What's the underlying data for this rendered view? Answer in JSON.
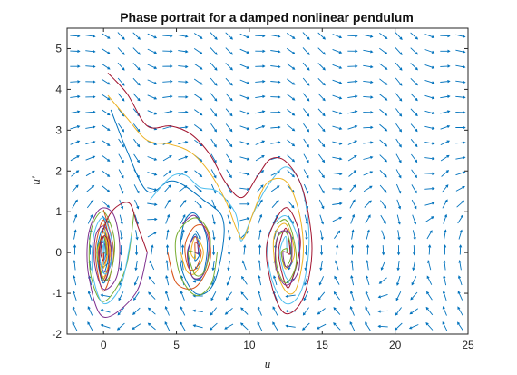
{
  "chart_data": {
    "type": "line",
    "title": "Phase portrait for a damped nonlinear pendulum",
    "xlabel": "u",
    "ylabel": "u′",
    "xlim": [
      -2.5,
      25
    ],
    "ylim": [
      -2,
      5.5
    ],
    "xticks": [
      0,
      5,
      10,
      15,
      20,
      25
    ],
    "xtick_labels": [
      "0",
      "5",
      "10",
      "15",
      "20",
      "25"
    ],
    "yticks": [
      -2,
      -1,
      0,
      1,
      2,
      3,
      4,
      5
    ],
    "ytick_labels": [
      "-2",
      "-1",
      "0",
      "1",
      "2",
      "3",
      "4",
      "5"
    ],
    "grid": false,
    "legend": null,
    "vector_field": {
      "color": "#0072BD",
      "x_range": [
        -2.5,
        25
      ],
      "y_range": [
        -2,
        5.5
      ],
      "x_count": 26,
      "y_count": 20
    },
    "series": [
      {
        "color": "#0072BD",
        "points": [
          [
            0,
            0.85
          ],
          [
            0.55,
            0
          ],
          [
            0,
            -0.75
          ],
          [
            -0.45,
            0
          ],
          [
            0,
            0.6
          ],
          [
            0.35,
            0
          ],
          [
            0,
            -0.5
          ],
          [
            -0.28,
            0
          ],
          [
            0,
            0.38
          ],
          [
            0.18,
            0
          ],
          [
            0,
            -0.2
          ],
          [
            0,
            0
          ]
        ]
      },
      {
        "color": "#D95319",
        "points": [
          [
            0,
            1.05
          ],
          [
            0.7,
            0
          ],
          [
            0,
            -0.95
          ],
          [
            -0.55,
            0
          ],
          [
            0,
            0.8
          ],
          [
            0.45,
            0
          ],
          [
            0,
            -0.65
          ],
          [
            -0.35,
            0
          ],
          [
            0,
            0.5
          ],
          [
            0.25,
            0
          ],
          [
            0,
            -0.3
          ],
          [
            0,
            0
          ]
        ]
      },
      {
        "color": "#EDB120",
        "points": [
          [
            0,
            0.7
          ],
          [
            0.45,
            0
          ],
          [
            0,
            -0.6
          ],
          [
            -0.38,
            0
          ],
          [
            0,
            0.5
          ],
          [
            0.28,
            0
          ],
          [
            0,
            -0.38
          ],
          [
            0,
            0
          ]
        ]
      },
      {
        "color": "#7E2F8E",
        "points": [
          [
            3,
            0
          ],
          [
            2.2,
            -1.0
          ],
          [
            0,
            -1.58
          ],
          [
            -1.0,
            -0.6
          ],
          [
            -1.05,
            0.4
          ],
          [
            -0.3,
            1.05
          ],
          [
            0.65,
            0.95
          ],
          [
            1.1,
            0.2
          ],
          [
            0.9,
            -0.6
          ],
          [
            0,
            -0.9
          ],
          [
            -0.6,
            -0.3
          ],
          [
            -0.55,
            0.4
          ],
          [
            0,
            0.65
          ],
          [
            0.45,
            0.3
          ],
          [
            0.5,
            -0.3
          ],
          [
            0,
            -0.45
          ],
          [
            -0.35,
            0
          ],
          [
            0,
            0.25
          ],
          [
            0.15,
            0
          ],
          [
            0,
            0
          ]
        ]
      },
      {
        "color": "#77AC30",
        "points": [
          [
            2.1,
            1.0
          ],
          [
            1.5,
            -0.4
          ],
          [
            0,
            -1.2
          ],
          [
            -0.9,
            -0.5
          ],
          [
            -0.85,
            0.55
          ],
          [
            0,
            1.0
          ],
          [
            0.75,
            0.3
          ],
          [
            0.5,
            -0.5
          ],
          [
            0,
            -0.65
          ],
          [
            -0.45,
            0
          ],
          [
            0,
            0.4
          ],
          [
            0.2,
            0
          ],
          [
            0,
            0
          ]
        ]
      },
      {
        "color": "#4DBEEE",
        "points": [
          [
            1.9,
            0.4
          ],
          [
            1.2,
            -0.8
          ],
          [
            0,
            -1.25
          ],
          [
            -0.75,
            -0.5
          ],
          [
            -0.65,
            0.45
          ],
          [
            0,
            0.85
          ],
          [
            0.6,
            0.2
          ],
          [
            0.4,
            -0.4
          ],
          [
            0,
            -0.5
          ],
          [
            -0.3,
            0
          ],
          [
            0,
            0.3
          ],
          [
            0,
            0
          ]
        ]
      },
      {
        "color": "#A2142F",
        "points": [
          [
            3,
            0
          ],
          [
            2.3,
            0.7
          ],
          [
            1.8,
            1.2
          ],
          [
            1.0,
            1.15
          ],
          [
            0.3,
            0.85
          ],
          [
            -0.2,
            0.3
          ],
          [
            -0.3,
            -0.35
          ],
          [
            0,
            -0.7
          ],
          [
            0.35,
            -0.4
          ],
          [
            0.3,
            0.25
          ],
          [
            0,
            0.4
          ],
          [
            -0.2,
            0
          ],
          [
            0,
            -0.2
          ],
          [
            0,
            0
          ]
        ]
      },
      {
        "color": "#0072BD",
        "points": [
          [
            0.5,
            3.5
          ],
          [
            1.6,
            2.5
          ],
          [
            3.0,
            1.5
          ],
          [
            4.5,
            1.75
          ],
          [
            5.5,
            1.65
          ],
          [
            6.8,
            1.3
          ],
          [
            8.1,
            0.9
          ],
          [
            8.2,
            0.2
          ],
          [
            7.5,
            -0.8
          ],
          [
            6.3,
            -1.0
          ],
          [
            5.3,
            -0.3
          ],
          [
            5.5,
            0.7
          ],
          [
            6.3,
            0.95
          ],
          [
            7.1,
            0.3
          ],
          [
            6.8,
            -0.55
          ],
          [
            6.1,
            -0.6
          ],
          [
            5.8,
            0
          ],
          [
            6.3,
            0.45
          ],
          [
            6.6,
            0
          ],
          [
            6.28,
            -0.2
          ],
          [
            6.28,
            0
          ]
        ]
      },
      {
        "color": "#D95319",
        "points": [
          [
            4.4,
            0
          ],
          [
            5.0,
            -0.75
          ],
          [
            6.3,
            -0.85
          ],
          [
            7.3,
            -0.2
          ],
          [
            7.1,
            0.55
          ],
          [
            6.3,
            0.65
          ],
          [
            5.6,
            0.2
          ],
          [
            5.8,
            -0.35
          ],
          [
            6.3,
            -0.4
          ],
          [
            6.7,
            0
          ],
          [
            6.3,
            0.25
          ],
          [
            6.28,
            0
          ]
        ]
      },
      {
        "color": "#EDB120",
        "points": [
          [
            5.3,
            0
          ],
          [
            5.7,
            -0.45
          ],
          [
            6.3,
            -0.5
          ],
          [
            6.85,
            0
          ],
          [
            6.3,
            0.38
          ],
          [
            6.0,
            0
          ],
          [
            6.28,
            -0.15
          ],
          [
            6.28,
            0
          ]
        ]
      },
      {
        "color": "#7E2F8E",
        "points": [
          [
            5.4,
            0.7
          ],
          [
            6.3,
            0.9
          ],
          [
            7.2,
            0.3
          ],
          [
            6.9,
            -0.5
          ],
          [
            6.1,
            -0.6
          ],
          [
            5.75,
            0
          ],
          [
            6.3,
            0.4
          ],
          [
            6.5,
            0
          ],
          [
            6.28,
            0
          ]
        ]
      },
      {
        "color": "#77AC30",
        "points": [
          [
            7.8,
            0
          ],
          [
            7.4,
            -0.75
          ],
          [
            6.3,
            -1.05
          ],
          [
            5.2,
            -0.5
          ],
          [
            5.0,
            0.4
          ],
          [
            6.3,
            0.85
          ],
          [
            7.3,
            0.4
          ],
          [
            7.0,
            -0.4
          ],
          [
            6.3,
            -0.55
          ],
          [
            5.8,
            0
          ],
          [
            6.28,
            0
          ]
        ]
      },
      {
        "color": "#4DBEEE",
        "points": [
          [
            3.2,
            1.3
          ],
          [
            4.6,
            1.85
          ],
          [
            5.6,
            1.9
          ],
          [
            6.6,
            1.6
          ],
          [
            7.8,
            1.5
          ],
          [
            9.0,
            1.0
          ],
          [
            9.3,
            0.5
          ],
          [
            9.5,
            0.3
          ],
          [
            10.2,
            0.9
          ],
          [
            11.2,
            1.6
          ],
          [
            12.5,
            2.1
          ],
          [
            13.6,
            1.6
          ],
          [
            14.1,
            0.3
          ],
          [
            13.6,
            -0.9
          ],
          [
            12.5,
            -1.25
          ],
          [
            11.5,
            -0.6
          ],
          [
            11.3,
            0.4
          ],
          [
            12.5,
            0.9
          ],
          [
            13.4,
            0.2
          ],
          [
            13.0,
            -0.6
          ],
          [
            12.5,
            -0.6
          ],
          [
            12.1,
            0
          ],
          [
            12.5,
            0.4
          ],
          [
            12.57,
            0
          ]
        ]
      },
      {
        "color": "#A2142F",
        "points": [
          [
            0.3,
            4.4
          ],
          [
            1.6,
            3.9
          ],
          [
            3.0,
            3.1
          ],
          [
            4.6,
            3.1
          ],
          [
            6.0,
            2.9
          ],
          [
            7.3,
            2.4
          ],
          [
            8.4,
            1.7
          ],
          [
            9.5,
            1.35
          ],
          [
            10.6,
            1.9
          ],
          [
            11.5,
            2.3
          ],
          [
            12.6,
            2.2
          ],
          [
            13.7,
            1.5
          ],
          [
            14.3,
            0.1
          ],
          [
            13.7,
            -1.1
          ],
          [
            12.5,
            -1.5
          ],
          [
            11.6,
            -0.9
          ],
          [
            11.2,
            0.2
          ],
          [
            12.5,
            1.1
          ],
          [
            13.5,
            0.3
          ],
          [
            12.9,
            -0.7
          ],
          [
            12.5,
            -0.8
          ],
          [
            12.0,
            0
          ],
          [
            12.5,
            0.6
          ],
          [
            12.8,
            0
          ],
          [
            12.57,
            0
          ]
        ]
      },
      {
        "color": "#EDB120",
        "points": [
          [
            0.3,
            3.85
          ],
          [
            1.6,
            3.3
          ],
          [
            3.0,
            2.75
          ],
          [
            4.6,
            2.65
          ],
          [
            6.0,
            2.45
          ],
          [
            7.3,
            1.95
          ],
          [
            8.4,
            1.25
          ],
          [
            9.1,
            0.6
          ],
          [
            9.6,
            0.35
          ],
          [
            10.3,
            1.0
          ],
          [
            11.2,
            1.7
          ],
          [
            12.5,
            1.75
          ],
          [
            13.4,
            1.0
          ],
          [
            13.7,
            0
          ],
          [
            13.2,
            -0.9
          ],
          [
            12.5,
            -0.95
          ],
          [
            11.8,
            -0.35
          ],
          [
            11.7,
            0.4
          ],
          [
            12.5,
            0.7
          ],
          [
            13.1,
            0
          ],
          [
            12.5,
            -0.4
          ],
          [
            12.2,
            0
          ],
          [
            12.57,
            0
          ]
        ]
      },
      {
        "color": "#77AC30",
        "points": [
          [
            11.9,
            0.7
          ],
          [
            12.5,
            0.8
          ],
          [
            13.0,
            0.4
          ],
          [
            13.2,
            -0.3
          ],
          [
            12.5,
            -0.75
          ],
          [
            11.9,
            -0.35
          ],
          [
            11.85,
            0.3
          ],
          [
            12.5,
            0.5
          ],
          [
            12.9,
            0
          ],
          [
            12.5,
            -0.35
          ],
          [
            12.2,
            0
          ],
          [
            12.57,
            0.1
          ],
          [
            12.57,
            0
          ]
        ]
      },
      {
        "color": "#7E2F8E",
        "points": [
          [
            13.4,
            0.6
          ],
          [
            13.4,
            -0.4
          ],
          [
            12.5,
            -0.8
          ],
          [
            11.8,
            -0.3
          ],
          [
            12.0,
            0.45
          ],
          [
            12.8,
            0.45
          ],
          [
            12.9,
            -0.2
          ],
          [
            12.5,
            -0.35
          ],
          [
            12.3,
            0
          ],
          [
            12.57,
            0
          ]
        ]
      },
      {
        "color": "#4DBEEE",
        "points": [
          [
            0,
            -0.3
          ],
          [
            0.12,
            0
          ],
          [
            0,
            0.2
          ],
          [
            -0.1,
            0
          ],
          [
            0,
            0
          ]
        ]
      }
    ]
  }
}
